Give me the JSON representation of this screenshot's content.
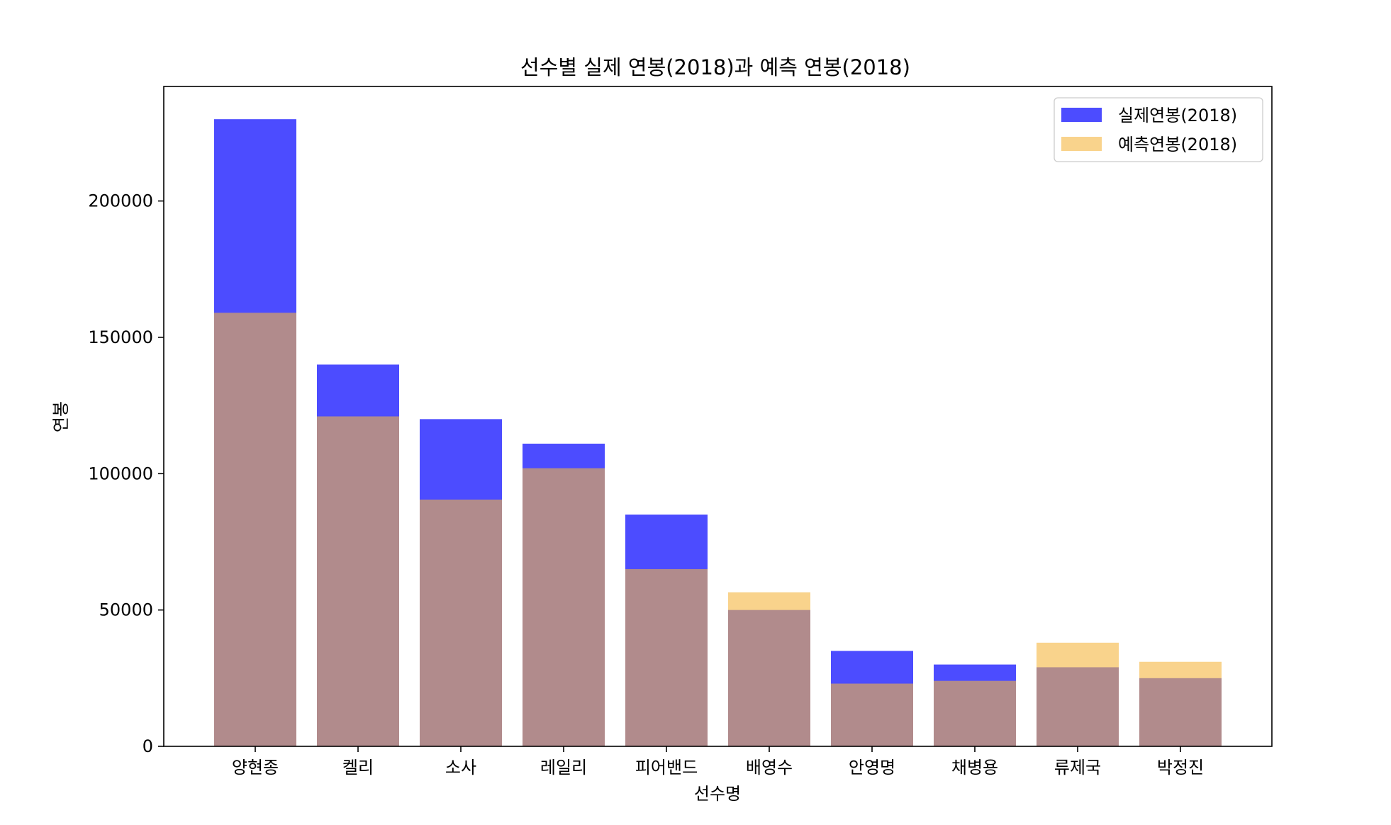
{
  "chart_data": {
    "type": "bar",
    "title": "선수별 실제 연봉(2018)과 예측 연봉(2018)",
    "xlabel": "선수명",
    "ylabel": "연봉",
    "categories": [
      "양현종",
      "켈리",
      "소사",
      "레일리",
      "피어밴드",
      "배영수",
      "안영명",
      "채병용",
      "류제국",
      "박정진"
    ],
    "ylim": [
      0,
      242000
    ],
    "yticks": [
      0,
      50000,
      100000,
      150000,
      200000
    ],
    "legend_position": "top-right",
    "grid": false,
    "series": [
      {
        "name": "실제연봉(2018)",
        "color": "#0000ff",
        "alpha": 0.7,
        "values": [
          230000,
          140000,
          120000,
          111000,
          85000,
          50000,
          35000,
          30000,
          29000,
          25000
        ]
      },
      {
        "name": "예측연봉(2018)",
        "color": "#f5b63f",
        "alpha": 0.6,
        "values": [
          159000,
          121000,
          90500,
          102000,
          65000,
          56500,
          23000,
          24000,
          38000,
          31000
        ]
      }
    ]
  }
}
